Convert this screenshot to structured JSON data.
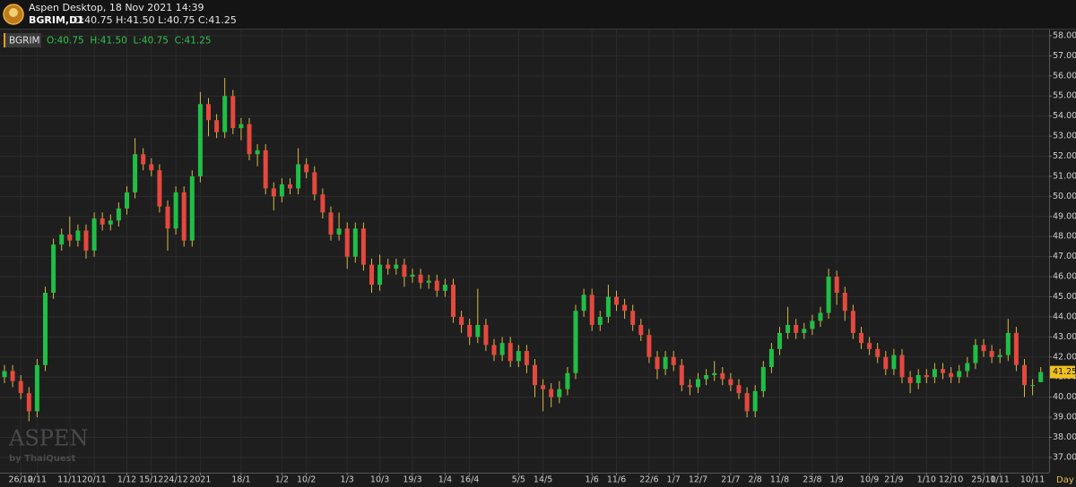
{
  "header": {
    "title": "Aspen Desktop, 18 Nov 2021 14:39",
    "symbol": "BGRIM,D1",
    "ohlc": "O:40.75 H:41.50 L:40.75 C:41.25"
  },
  "chart_data": {
    "type": "candlestick",
    "symbol": "BGRIM",
    "ohlc_text": "O:40.75  H:41.50  L:40.75  C:41.25",
    "categories": [
      null,
      null,
      "26/10",
      null,
      "2/11",
      null,
      null,
      null,
      "11/11",
      null,
      null,
      "20/11",
      null,
      null,
      null,
      "1/12",
      null,
      null,
      "15/12",
      null,
      null,
      "24/12",
      null,
      null,
      "2021",
      null,
      null,
      null,
      null,
      "18/1",
      null,
      null,
      null,
      null,
      "1/2",
      null,
      null,
      "10/2",
      null,
      null,
      null,
      null,
      "1/3",
      null,
      null,
      null,
      "10/3",
      null,
      null,
      null,
      "19/3",
      null,
      null,
      null,
      "1/4",
      null,
      null,
      "16/4",
      null,
      null,
      null,
      null,
      null,
      "5/5",
      null,
      null,
      "14/5",
      null,
      null,
      null,
      null,
      null,
      "1/6",
      null,
      null,
      "11/6",
      null,
      null,
      null,
      "22/6",
      null,
      null,
      "1/7",
      null,
      null,
      "12/7",
      null,
      null,
      null,
      "21/7",
      null,
      null,
      "2/8",
      null,
      null,
      "11/8",
      null,
      null,
      null,
      "23/8",
      null,
      null,
      "1/9",
      null,
      null,
      null,
      "10/9",
      null,
      null,
      "21/9",
      null,
      null,
      null,
      "1/10",
      null,
      null,
      "12/10",
      null,
      null,
      null,
      "25/10",
      null,
      "1/11",
      null,
      null,
      null,
      "10/11",
      null
    ],
    "open": [
      41.0,
      41.3,
      40.8,
      40.2,
      39.3,
      41.6,
      45.2,
      47.6,
      48.1,
      47.8,
      48.3,
      47.3,
      48.9,
      48.6,
      48.8,
      49.4,
      50.2,
      52.1,
      51.6,
      51.3,
      49.5,
      48.4,
      50.2,
      47.8,
      51.0,
      54.6,
      53.8,
      53.2,
      55.0,
      53.4,
      53.6,
      52.1,
      52.3,
      50.4,
      50.0,
      50.6,
      50.4,
      51.6,
      51.2,
      50.1,
      49.2,
      48.1,
      48.4,
      47.0,
      48.4,
      46.6,
      45.6,
      46.6,
      46.4,
      46.6,
      46.0,
      46.1,
      45.7,
      45.8,
      45.3,
      45.6,
      44.0,
      43.6,
      43.0,
      43.6,
      42.6,
      42.1,
      42.7,
      41.8,
      42.3,
      41.6,
      40.6,
      40.4,
      40.0,
      40.4,
      41.2,
      44.3,
      45.1,
      43.6,
      44.0,
      45.0,
      44.6,
      44.3,
      43.6,
      43.1,
      42.0,
      41.4,
      42.0,
      41.6,
      40.6,
      40.5,
      40.9,
      41.1,
      41.2,
      40.9,
      40.6,
      40.2,
      39.3,
      40.3,
      41.5,
      42.4,
      43.2,
      43.6,
      43.2,
      43.4,
      43.8,
      44.2,
      46.0,
      45.2,
      44.3,
      43.2,
      42.7,
      42.4,
      42.0,
      41.4,
      42.1,
      41.0,
      40.7,
      41.1,
      41.0,
      41.4,
      41.2,
      41.0,
      41.3,
      41.7,
      42.6,
      42.3,
      42.0,
      42.1,
      43.2,
      41.6,
      40.6,
      40.75
    ],
    "high": [
      41.6,
      41.6,
      41.1,
      40.5,
      41.9,
      45.5,
      47.9,
      48.4,
      49.0,
      48.6,
      48.6,
      49.2,
      49.2,
      49.1,
      49.7,
      50.5,
      52.9,
      52.4,
      51.9,
      51.6,
      49.8,
      50.5,
      50.5,
      51.3,
      55.2,
      54.9,
      54.1,
      55.9,
      55.3,
      53.9,
      53.9,
      52.6,
      52.6,
      50.7,
      50.9,
      50.9,
      52.4,
      51.9,
      51.5,
      50.4,
      49.5,
      49.2,
      48.7,
      48.7,
      48.7,
      46.9,
      47.1,
      46.9,
      46.9,
      46.9,
      46.4,
      46.4,
      46.1,
      46.1,
      45.9,
      45.9,
      44.3,
      43.9,
      45.4,
      43.9,
      42.9,
      43.0,
      43.0,
      42.6,
      42.6,
      41.9,
      40.9,
      40.7,
      40.8,
      41.5,
      44.6,
      45.4,
      45.4,
      44.3,
      45.6,
      45.3,
      44.9,
      44.6,
      43.9,
      43.4,
      42.3,
      42.3,
      42.3,
      41.9,
      40.9,
      41.2,
      41.4,
      41.8,
      41.5,
      41.2,
      40.9,
      40.5,
      40.6,
      41.8,
      42.7,
      43.5,
      44.5,
      43.9,
      43.7,
      44.1,
      44.5,
      46.4,
      46.3,
      45.5,
      44.6,
      43.5,
      43.0,
      42.7,
      42.3,
      42.4,
      42.4,
      41.3,
      41.4,
      41.4,
      41.7,
      41.7,
      41.5,
      41.6,
      42.0,
      42.9,
      42.9,
      42.6,
      42.4,
      43.9,
      43.5,
      41.9,
      40.9,
      41.5
    ],
    "low": [
      40.7,
      40.5,
      39.9,
      38.8,
      39.0,
      41.3,
      44.9,
      47.3,
      47.5,
      47.5,
      46.9,
      47.0,
      48.3,
      48.3,
      48.5,
      49.1,
      49.9,
      51.3,
      51.0,
      49.2,
      47.3,
      48.1,
      47.5,
      47.5,
      50.7,
      53.0,
      52.9,
      52.9,
      53.1,
      52.8,
      51.8,
      51.5,
      50.1,
      49.3,
      49.7,
      50.1,
      50.1,
      50.9,
      49.8,
      48.9,
      47.8,
      47.8,
      46.4,
      46.7,
      46.3,
      45.2,
      45.3,
      46.1,
      46.1,
      45.5,
      45.7,
      45.4,
      45.4,
      45.0,
      45.0,
      43.7,
      43.2,
      42.6,
      42.7,
      42.3,
      41.8,
      41.8,
      41.5,
      41.5,
      41.2,
      40.0,
      39.3,
      39.5,
      39.7,
      40.1,
      40.9,
      44.0,
      43.3,
      43.3,
      43.7,
      44.3,
      43.9,
      43.3,
      42.8,
      41.7,
      40.9,
      41.1,
      41.3,
      40.3,
      40.1,
      40.2,
      40.6,
      40.8,
      40.6,
      40.3,
      39.9,
      39.0,
      39.0,
      40.0,
      41.2,
      42.1,
      42.9,
      42.9,
      42.9,
      43.1,
      43.5,
      43.9,
      44.6,
      43.8,
      42.9,
      42.4,
      42.1,
      41.7,
      41.1,
      41.1,
      40.7,
      40.2,
      40.4,
      40.7,
      40.7,
      40.9,
      40.7,
      40.7,
      41.0,
      41.4,
      42.0,
      41.7,
      41.7,
      41.8,
      41.3,
      40.0,
      40.1,
      40.75
    ],
    "close": [
      41.3,
      40.8,
      40.2,
      39.3,
      41.6,
      45.2,
      47.6,
      48.1,
      47.8,
      48.3,
      47.3,
      48.9,
      48.6,
      48.8,
      49.4,
      50.2,
      52.1,
      51.6,
      51.3,
      49.5,
      48.4,
      50.2,
      47.8,
      51.0,
      54.6,
      53.8,
      53.2,
      55.0,
      53.4,
      53.6,
      52.1,
      52.3,
      50.4,
      50.0,
      50.6,
      50.4,
      51.6,
      51.2,
      50.1,
      49.2,
      48.1,
      48.4,
      47.0,
      48.4,
      46.6,
      45.6,
      46.6,
      46.4,
      46.6,
      46.0,
      46.1,
      45.7,
      45.8,
      45.3,
      45.6,
      44.0,
      43.6,
      43.0,
      43.6,
      42.6,
      42.1,
      42.7,
      41.8,
      42.3,
      41.6,
      40.6,
      40.4,
      40.0,
      40.4,
      41.2,
      44.3,
      45.1,
      43.6,
      44.0,
      45.0,
      44.6,
      44.3,
      43.6,
      43.1,
      42.0,
      41.4,
      42.0,
      41.6,
      40.6,
      40.5,
      40.9,
      41.1,
      41.2,
      40.9,
      40.6,
      40.2,
      39.3,
      40.3,
      41.5,
      42.4,
      43.2,
      43.6,
      43.2,
      43.4,
      43.8,
      44.2,
      46.0,
      45.2,
      44.3,
      43.2,
      42.7,
      42.4,
      42.0,
      41.4,
      42.1,
      41.0,
      40.7,
      41.1,
      41.0,
      41.4,
      41.2,
      41.0,
      41.3,
      41.7,
      42.6,
      42.3,
      42.0,
      42.1,
      43.2,
      41.6,
      40.6,
      40.6,
      41.25
    ],
    "up_color": "#1fbf45",
    "down_color": "#e5483d",
    "wick_color": "#d9b845",
    "ylim": [
      36.24,
      58.31
    ],
    "yticks": [
      {
        "value": 37,
        "label": "37.00"
      },
      {
        "value": 38,
        "label": "38.00"
      },
      {
        "value": 39,
        "label": "39.00"
      },
      {
        "value": 40,
        "label": "40.00"
      },
      {
        "value": 41,
        "label": "41.00"
      },
      {
        "value": 42,
        "label": "42.00"
      },
      {
        "value": 43,
        "label": "43.00"
      },
      {
        "value": 44,
        "label": "44.00"
      },
      {
        "value": 45,
        "label": "45.00"
      },
      {
        "value": 46,
        "label": "46.00"
      },
      {
        "value": 47,
        "label": "47.00"
      },
      {
        "value": 48,
        "label": "48.00"
      },
      {
        "value": 49,
        "label": "49.00"
      },
      {
        "value": 50,
        "label": "50.00"
      },
      {
        "value": 51,
        "label": "51.00"
      },
      {
        "value": 52,
        "label": "52.00"
      },
      {
        "value": 53,
        "label": "53.00"
      },
      {
        "value": 54,
        "label": "54.00"
      },
      {
        "value": 55,
        "label": "55.00"
      },
      {
        "value": 56,
        "label": "56.00"
      },
      {
        "value": 57,
        "label": "57.00"
      },
      {
        "value": 58,
        "label": "58.00"
      }
    ],
    "grid": true,
    "price_tag": {
      "value": 41.25,
      "label": "41.25"
    },
    "x_unit": "Day"
  },
  "watermark": {
    "brand": "ASPEN",
    "byline": "by ThaiQuest"
  }
}
